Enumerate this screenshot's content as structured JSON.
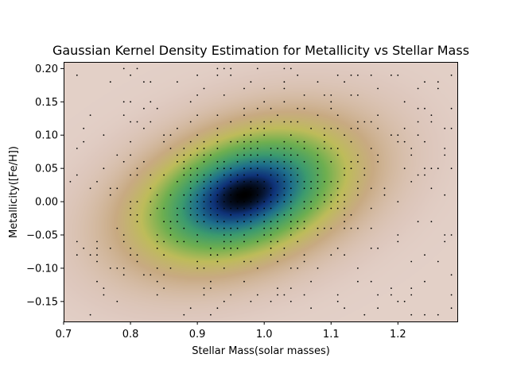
{
  "chart_data": {
    "type": "heatmap",
    "subtype": "gaussian-kde-with-scatter",
    "title": "Gaussian Kernel Density Estimation for Metallicity vs Stellar Mass",
    "xlabel": "Stellar Mass(solar masses)",
    "ylabel": "Metallicity([Fe/H])",
    "xlim": [
      0.7,
      1.29
    ],
    "ylim": [
      -0.18,
      0.21
    ],
    "xticks": [
      0.7,
      0.8,
      0.9,
      1.0,
      1.1,
      1.2
    ],
    "xtick_labels": [
      "0.7",
      "0.8",
      "0.9",
      "1.0",
      "1.1",
      "1.2"
    ],
    "yticks": [
      -0.15,
      -0.1,
      -0.05,
      0.0,
      0.05,
      0.1,
      0.15,
      0.2
    ],
    "ytick_labels": [
      "−0.15",
      "−0.10",
      "−0.05",
      "0.00",
      "0.05",
      "0.10",
      "0.15",
      "0.20"
    ],
    "colormap": "gist_earth_r",
    "grid": false,
    "legend": "none",
    "density": {
      "peak_x": 0.97,
      "peak_y": 0.01,
      "std_x": 0.1,
      "std_y": 0.065,
      "correlation": 0.35,
      "x_step": 0.01,
      "y_step": 0.01
    },
    "colors": {
      "dot": "#000000",
      "axis": "#000000"
    }
  }
}
